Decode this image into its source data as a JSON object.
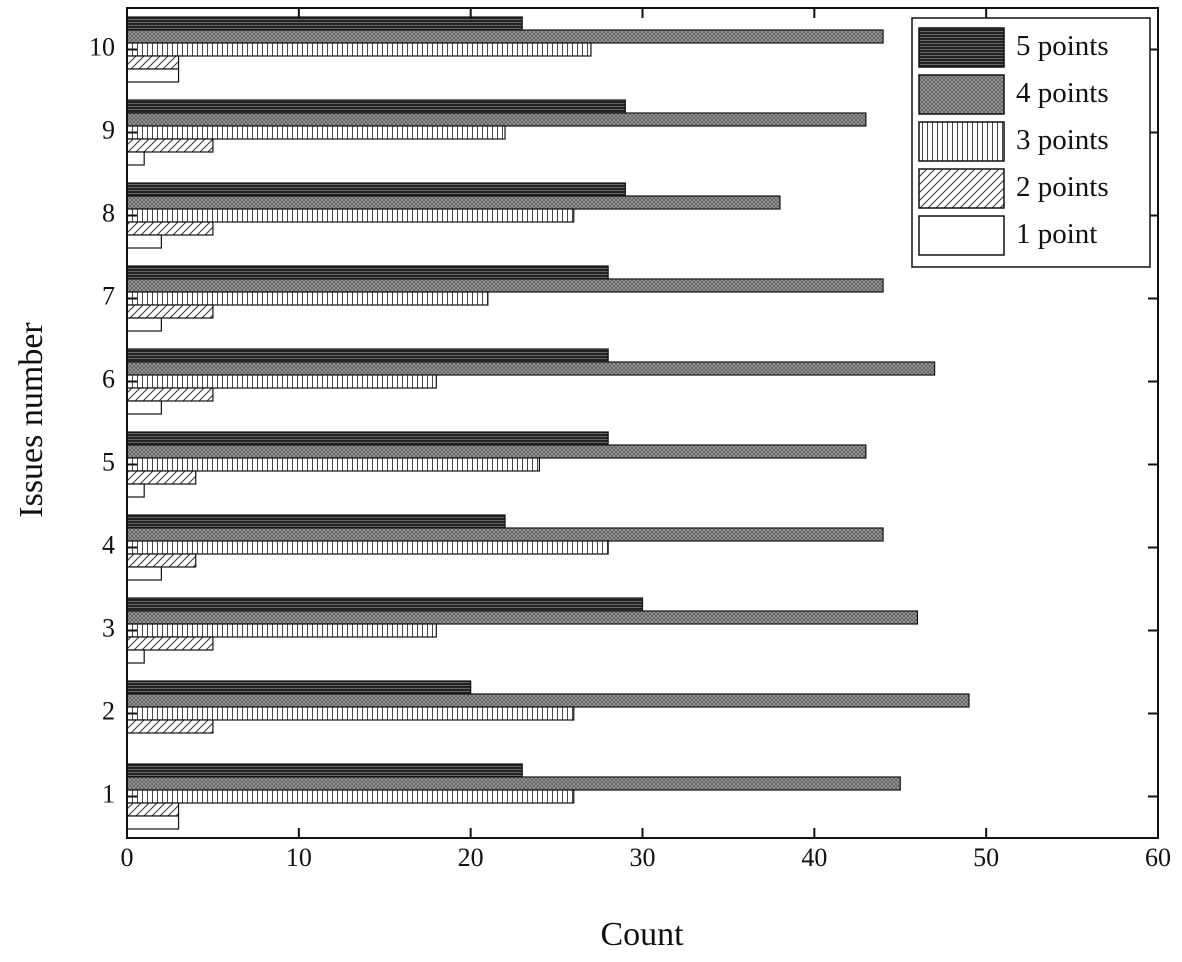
{
  "chart_data": {
    "type": "hbar",
    "x_label": "Count",
    "y_label": "Issues number",
    "categories": [
      "1",
      "2",
      "3",
      "4",
      "5",
      "6",
      "7",
      "8",
      "9",
      "10"
    ],
    "series": [
      {
        "name": "5 points",
        "color": "#222222",
        "pattern": "horizontal",
        "values": [
          23,
          20,
          30,
          22,
          28,
          28,
          28,
          29,
          29,
          23
        ]
      },
      {
        "name": "4 points",
        "color": "#9a9a9a",
        "pattern": "crosshatch",
        "values": [
          45,
          49,
          46,
          44,
          43,
          47,
          44,
          38,
          43,
          44
        ]
      },
      {
        "name": "3 points",
        "color": "#ffffff",
        "pattern": "vertical",
        "values": [
          26,
          26,
          18,
          28,
          24,
          18,
          21,
          26,
          22,
          27
        ]
      },
      {
        "name": "2 points",
        "color": "#ffffff",
        "pattern": "diagonal",
        "values": [
          3,
          5,
          5,
          4,
          4,
          5,
          5,
          5,
          5,
          3
        ]
      },
      {
        "name": "1 point",
        "color": "#ffffff",
        "pattern": "none",
        "values": [
          3,
          0,
          1,
          2,
          1,
          2,
          2,
          2,
          1,
          3
        ]
      }
    ],
    "xlim": [
      0,
      60
    ],
    "xticks": [
      0,
      10,
      20,
      30,
      40,
      50,
      60
    ],
    "legend": "upper right"
  }
}
